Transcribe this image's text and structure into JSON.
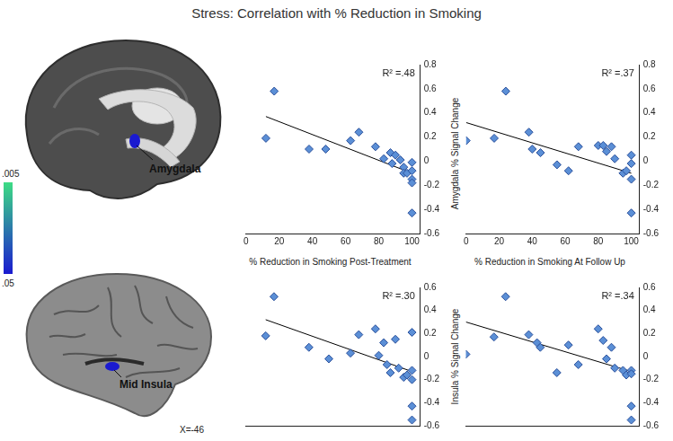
{
  "title": "Stress: Correlation with % Reduction in Smoking",
  "brain_panels": [
    {
      "label": "Amygdala"
    },
    {
      "label": "Mid Insula",
      "slice": "X=-46"
    }
  ],
  "colorbar": {
    "range": [
      0.005,
      0.05
    ],
    "ticks": [
      {
        "value": 0.005,
        "label": ".005"
      },
      {
        "value": 0.05,
        "label": ".05"
      }
    ],
    "colors": [
      "#3ddc84",
      "#1a1ad0"
    ]
  },
  "chart_data": [
    {
      "type": "scatter",
      "x_label": "% Reduction in Smoking Post-Treatment",
      "annotation": "R² =.48",
      "x": [
        12,
        17,
        38,
        48,
        63,
        68,
        78,
        83,
        87,
        88,
        90,
        93,
        95,
        95,
        97,
        100,
        100,
        100,
        100,
        100
      ],
      "values": [
        0.19,
        0.58,
        0.1,
        0.1,
        0.17,
        0.24,
        0.12,
        0.02,
        0.07,
        -0.02,
        0.05,
        0.01,
        -0.05,
        -0.1,
        -0.1,
        -0.15,
        -0.18,
        -0.08,
        -0.01,
        -0.43
      ],
      "trend": {
        "x": [
          12,
          100
        ],
        "y": [
          0.37,
          -0.1
        ]
      },
      "color": "#5b8fd6",
      "marker": "diamond",
      "grid": false,
      "xlim": [
        0,
        105
      ],
      "xticks": [
        0,
        20,
        40,
        60,
        80,
        100
      ],
      "ylim": [
        -0.6,
        0.8
      ],
      "yticks": [
        0.8,
        0.6,
        0.4,
        0.2,
        0,
        -0.2,
        -0.4,
        -0.6
      ]
    },
    {
      "type": "scatter",
      "x_label": "% Reduction in Smoking At Follow Up",
      "y_label": "Amygdala % Signal Change",
      "annotation": "R² =.37",
      "x": [
        0,
        17,
        24,
        38,
        40,
        45,
        55,
        62,
        68,
        80,
        83,
        85,
        88,
        90,
        95,
        97,
        100,
        100,
        100,
        100
      ],
      "values": [
        0.17,
        0.19,
        0.58,
        0.24,
        0.1,
        0.07,
        -0.03,
        -0.08,
        0.12,
        0.13,
        0.13,
        0.08,
        0.12,
        0.02,
        -0.1,
        -0.08,
        -0.02,
        -0.15,
        -0.43,
        0.05
      ],
      "trend": {
        "x": [
          0,
          100
        ],
        "y": [
          0.32,
          -0.1
        ]
      },
      "color": "#5b8fd6",
      "marker": "diamond",
      "grid": false,
      "xlim": [
        0,
        105
      ],
      "xticks": [
        0,
        20,
        40,
        60,
        80,
        100
      ],
      "ylim": [
        -0.6,
        0.8
      ],
      "yticks": [
        0.8,
        0.6,
        0.4,
        0.2,
        0,
        -0.2,
        -0.4,
        -0.6
      ]
    },
    {
      "type": "scatter",
      "annotation": "R² =.30",
      "x": [
        12,
        17,
        38,
        50,
        63,
        68,
        78,
        80,
        83,
        85,
        87,
        90,
        92,
        95,
        97,
        100,
        100,
        100,
        100,
        100
      ],
      "values": [
        0.18,
        0.52,
        0.08,
        -0.02,
        0.03,
        0.19,
        0.24,
        0.01,
        0.12,
        -0.07,
        -0.14,
        0.15,
        -0.1,
        -0.18,
        -0.16,
        0.21,
        -0.12,
        -0.2,
        -0.43,
        -0.55
      ],
      "trend": {
        "x": [
          12,
          100
        ],
        "y": [
          0.32,
          -0.13
        ]
      },
      "color": "#5b8fd6",
      "marker": "diamond",
      "grid": false,
      "tick_labels": "y",
      "xlim": [
        0,
        105
      ],
      "ylim": [
        -0.6,
        0.6
      ],
      "yticks": [
        0.6,
        0.4,
        0.2,
        0,
        -0.2,
        -0.4,
        -0.6
      ]
    },
    {
      "type": "scatter",
      "y_label": "Insula % Signal Change",
      "annotation": "R² =.34",
      "x": [
        0,
        17,
        24,
        38,
        43,
        45,
        55,
        62,
        68,
        80,
        83,
        85,
        88,
        90,
        95,
        97,
        100,
        100,
        100,
        100
      ],
      "values": [
        0.02,
        0.17,
        0.52,
        0.19,
        0.12,
        0.08,
        -0.14,
        0.1,
        -0.07,
        0.24,
        0.14,
        -0.02,
        0.08,
        -0.1,
        -0.12,
        -0.16,
        -0.12,
        -0.15,
        -0.43,
        -0.55
      ],
      "trend": {
        "x": [
          0,
          100
        ],
        "y": [
          0.3,
          -0.13
        ]
      },
      "color": "#5b8fd6",
      "marker": "diamond",
      "grid": false,
      "tick_labels": "y",
      "xlim": [
        0,
        105
      ],
      "ylim": [
        -0.6,
        0.6
      ],
      "yticks": [
        0.6,
        0.4,
        0.2,
        0,
        -0.2,
        -0.4,
        -0.6
      ]
    }
  ]
}
